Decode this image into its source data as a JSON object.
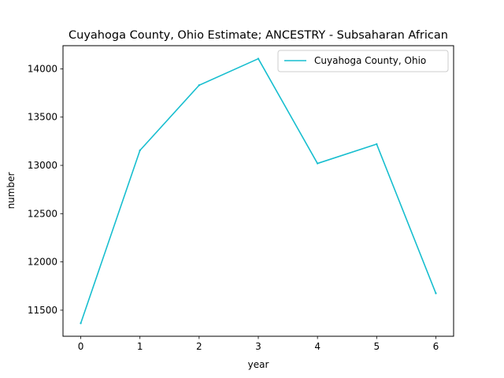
{
  "chart_data": {
    "type": "line",
    "title": "Cuyahoga County, Ohio Estimate; ANCESTRY - Subsaharan African",
    "xlabel": "year",
    "ylabel": "number",
    "x": [
      0,
      1,
      2,
      3,
      4,
      5,
      6
    ],
    "xticks": [
      "0",
      "1",
      "2",
      "3",
      "4",
      "5",
      "6"
    ],
    "yticks": [
      "11500",
      "12000",
      "12500",
      "13000",
      "13500",
      "14000"
    ],
    "xlim": [
      -0.3,
      6.3
    ],
    "ylim": [
      11230,
      14240
    ],
    "series": [
      {
        "name": "Cuyahoga County, Ohio",
        "color": "#17becf",
        "values": [
          11365,
          13155,
          13830,
          14105,
          13020,
          13220,
          11675
        ]
      }
    ],
    "grid": false,
    "legend": "top-right"
  }
}
